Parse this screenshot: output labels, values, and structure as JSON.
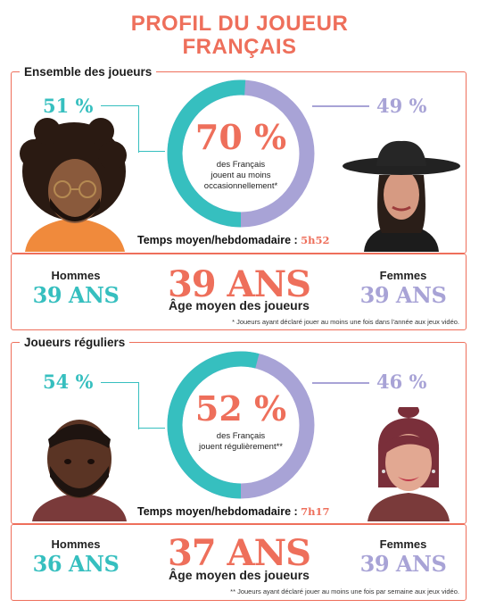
{
  "title": {
    "line1": "PROFIL DU JOUEUR",
    "line2": "FRANÇAIS"
  },
  "colors": {
    "coral": "#ee6f5b",
    "teal": "#36bfbf",
    "lavender": "#a8a3d6"
  },
  "section1": {
    "heading": "Ensemble des joueurs",
    "men_pct": "51 %",
    "women_pct": "49 %",
    "center_pct": "70 %",
    "center_text_l1": "des Français",
    "center_text_l2": "jouent au moins",
    "center_text_l3": "occasionnellement*",
    "donut_fraction_teal": 0.51,
    "temps_label": "Temps moyen/hebdomadaire :",
    "temps_value": "5h52",
    "men_label": "Hommes",
    "men_age": "39 ANS",
    "avg_age": "39 ANS",
    "avg_label": "Âge moyen des joueurs",
    "women_label": "Femmes",
    "women_age": "39 ANS",
    "note": "* Joueurs ayant déclaré jouer au moins une fois dans l'année aux jeux vidéo."
  },
  "section2": {
    "heading": "Joueurs réguliers",
    "men_pct": "54 %",
    "women_pct": "46 %",
    "center_pct": "52 %",
    "center_text_l1": "des Français",
    "center_text_l2": "jouent régulièrement**",
    "donut_fraction_teal": 0.54,
    "temps_label": "Temps moyen/hebdomadaire :",
    "temps_value": "7h17",
    "men_label": "Hommes",
    "men_age": "36 ANS",
    "avg_age": "37 ANS",
    "avg_label": "Âge moyen des joueurs",
    "women_label": "Femmes",
    "women_age": "39 ANS",
    "note": "** Joueurs ayant déclaré jouer au moins une fois par semaine aux jeux vidéo."
  },
  "icons": [
    "male-avatar-curly-hair",
    "female-avatar-black-hat",
    "male-avatar-beard",
    "female-avatar-ponytail"
  ]
}
